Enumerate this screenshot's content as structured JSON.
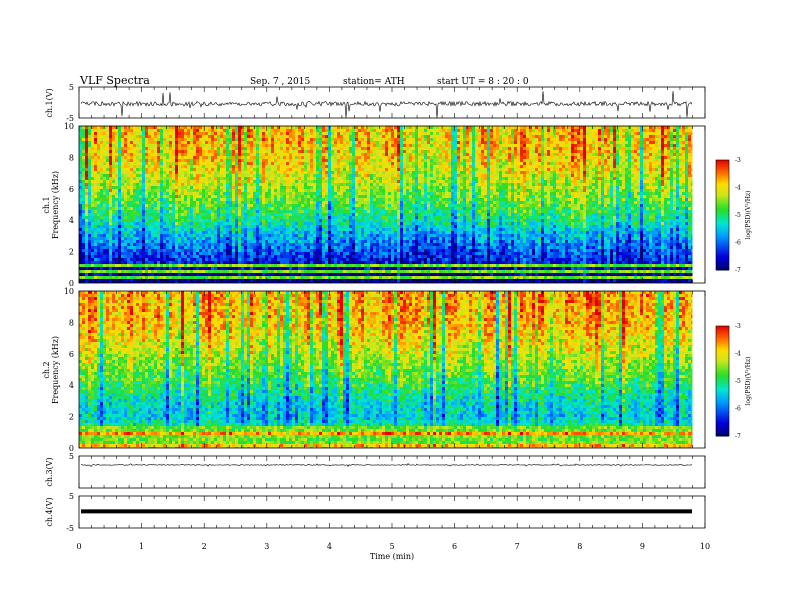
{
  "header": {
    "title": "VLF Spectra",
    "date": "Sep. 7 , 2015",
    "station": "station= ATH",
    "start_ut": "start UT = 8 : 20 : 0"
  },
  "chart_data": {
    "type": "heatmap",
    "xlabel": "Time (min)",
    "xlim": [
      0,
      10
    ],
    "x_ticks": [
      "0",
      "1",
      "2",
      "3",
      "4",
      "5",
      "6",
      "7",
      "8",
      "9",
      "10"
    ],
    "data_end_min": 9.8,
    "panels": [
      {
        "id": "ch1-waveform",
        "kind": "waveform",
        "ylabel": "ch.1(V)",
        "ylim": [
          -5,
          5
        ],
        "y_ticks": [
          "5",
          "-5"
        ],
        "baseline": -0.4,
        "noise": 0.7,
        "spike_max": 5
      },
      {
        "id": "ch1-spectrogram",
        "kind": "spectrogram",
        "ylabel": "Frequency (kHz)",
        "ylabel2": "ch.1",
        "ylim": [
          0,
          10
        ],
        "y_ticks": [
          "0",
          "2",
          "4",
          "6",
          "8",
          "10"
        ],
        "colorbar": {
          "label": "log(PSD)(V²/Hz)",
          "range": [
            -7,
            -3
          ],
          "ticks": [
            "-3",
            "-4",
            "-5",
            "-6",
            "-7"
          ]
        },
        "mean_log_psd": [
          [
            0.0,
            -6.9
          ],
          [
            0.5,
            -6.8
          ],
          [
            1.0,
            -6.6
          ],
          [
            1.5,
            -6.3
          ],
          [
            2.0,
            -6.1
          ],
          [
            3.0,
            -5.6
          ],
          [
            4.0,
            -5.1
          ],
          [
            5.0,
            -4.7
          ],
          [
            6.0,
            -4.4
          ],
          [
            7.0,
            -4.1
          ],
          [
            8.0,
            -3.9
          ],
          [
            9.0,
            -3.8
          ],
          [
            10.0,
            -3.8
          ]
        ],
        "lines_khz": [
          0.4,
          0.8,
          1.1
        ]
      },
      {
        "id": "ch2-spectrogram",
        "kind": "spectrogram",
        "ylabel": "Frequency (kHz)",
        "ylabel2": "ch.2",
        "ylim": [
          0,
          10
        ],
        "y_ticks": [
          "0",
          "2",
          "4",
          "6",
          "8",
          "10"
        ],
        "colorbar": {
          "label": "log(PSD)(V²/Hz)",
          "range": [
            -7,
            -3
          ],
          "ticks": [
            "-3",
            "-4",
            "-5",
            "-6",
            "-7"
          ]
        },
        "mean_log_psd": [
          [
            0.0,
            -4.3
          ],
          [
            0.3,
            -3.4
          ],
          [
            0.6,
            -4.2
          ],
          [
            0.9,
            -3.5
          ],
          [
            1.2,
            -4.1
          ],
          [
            1.5,
            -5.2
          ],
          [
            2.0,
            -5.5
          ],
          [
            3.0,
            -5.3
          ],
          [
            4.0,
            -4.9
          ],
          [
            5.0,
            -4.6
          ],
          [
            6.0,
            -4.3
          ],
          [
            7.0,
            -4.0
          ],
          [
            8.0,
            -3.8
          ],
          [
            9.0,
            -3.7
          ],
          [
            10.0,
            -3.7
          ]
        ],
        "lines_khz": [
          0.3,
          0.55,
          0.8,
          1.05,
          1.3
        ]
      },
      {
        "id": "ch3-waveform",
        "kind": "waveform",
        "ylabel": "ch.3(V)",
        "ylim": [
          -5,
          5
        ],
        "y_ticks": [
          "5"
        ],
        "baseline": 2.2,
        "noise": 0.12,
        "spike_max": 0.4
      },
      {
        "id": "ch4-waveform",
        "kind": "waveform",
        "ylabel": "ch.4(V)",
        "ylim": [
          -5,
          5
        ],
        "y_ticks": [
          "5",
          "-5"
        ],
        "baseline": 0.2,
        "noise": 0.0,
        "spike_max": 0.0
      }
    ]
  }
}
